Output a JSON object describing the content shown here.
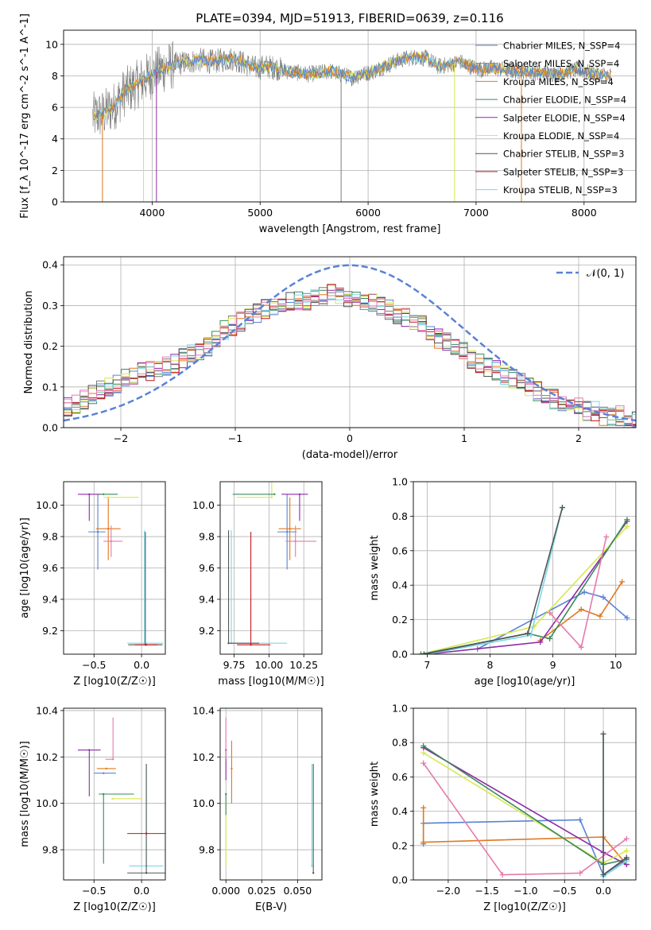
{
  "title": "PLATE=0394, MJD=51913, FIBERID=0639, z=0.116",
  "series_names": [
    "Chabrier MILES, N$_{SSP}$=4",
    "Salpeter MILES, N$_{SSP}$=4",
    "Kroupa MILES, N$_{SSP}$=4",
    "Chabrier ELODIE, N$_{SSP}$=4",
    "Salpeter ELODIE, N$_{SSP}$=4",
    "Kroupa ELODIE, N$_{SSP}$=4",
    "Chabrier STELIB, N$_{SSP}$=3",
    "Salpeter STELIB, N$_{SSP}$=3",
    "Kroupa STELIB, N$_{SSP}$=3"
  ],
  "colors": [
    "#5a82d6",
    "#7a7a7a",
    "#e0781e",
    "#3a8a5a",
    "#8e2aa8",
    "#d8e850",
    "#555555",
    "#c01818",
    "#7ad8e8",
    "#e67aac"
  ],
  "gaussian_label": "𝒩(0, 1)",
  "chart_data": [
    {
      "type": "line",
      "id": "spectrum",
      "title": "PLATE=0394, MJD=51913, FIBERID=0639, z=0.116",
      "xlabel": "wavelength [Angstrom, rest frame]",
      "ylabel": "Flux [f_λ 10^-17 erg cm^-2 s^-1 A^-1]",
      "xlim": [
        3180,
        8480
      ],
      "ylim": [
        0,
        10.9
      ],
      "xticks": [
        4000,
        5000,
        6000,
        7000,
        8000
      ],
      "yticks": [
        0,
        2,
        4,
        6,
        8,
        10
      ],
      "legend": [
        "Chabrier MILES, N_SSP=4",
        "Salpeter MILES, N_SSP=4",
        "Kroupa MILES, N_SSP=4",
        "Chabrier ELODIE, N_SSP=4",
        "Salpeter ELODIE, N_SSP=4",
        "Kroupa ELODIE, N_SSP=4",
        "Chabrier STELIB, N_SSP=3",
        "Salpeter STELIB, N_SSP=3",
        "Kroupa STELIB, N_SSP=3"
      ],
      "legend_position": "upper right",
      "continuum": {
        "x": [
          3450,
          3550,
          3650,
          3750,
          3850,
          3950,
          4050,
          4150,
          4250,
          4350,
          4450,
          4550,
          4650,
          4750,
          4850,
          4950,
          5050,
          5150,
          5250,
          5350,
          5450,
          5550,
          5650,
          5750,
          5850,
          5950,
          6050,
          6150,
          6250,
          6350,
          6450,
          6550,
          6650,
          6750,
          6850,
          6950,
          7050,
          7150,
          7250,
          7350,
          7450,
          7550,
          7650,
          7750,
          7850,
          7950,
          8050,
          8150,
          8250
        ],
        "y": [
          5.4,
          5.6,
          6.1,
          7.0,
          7.4,
          7.9,
          8.3,
          8.6,
          8.8,
          8.9,
          9.0,
          8.9,
          9.0,
          9.1,
          8.8,
          8.5,
          8.6,
          8.5,
          8.3,
          8.2,
          8.1,
          8.2,
          8.3,
          8.1,
          7.9,
          8.1,
          8.3,
          8.6,
          8.9,
          9.1,
          9.2,
          9.1,
          8.6,
          8.7,
          8.9,
          8.6,
          8.4,
          8.5,
          8.4,
          8.3,
          8.3,
          8.2,
          8.2,
          8.1,
          8.3,
          8.4,
          8.2,
          8.1,
          8.0
        ]
      },
      "x_range": [
        3450,
        8250
      ]
    },
    {
      "type": "bar",
      "id": "residuals",
      "xlabel": "(data-model)/error",
      "ylabel": "Normed distribution",
      "xlim": [
        -2.5,
        2.5
      ],
      "ylim": [
        0,
        0.42
      ],
      "xticks": [
        -2,
        -1,
        0,
        1,
        2
      ],
      "yticks": [
        0.0,
        0.1,
        0.2,
        0.3,
        0.4
      ],
      "legend": [
        "𝒩(0, 1)"
      ],
      "legend_position": "upper right",
      "bin_width": 0.1,
      "bin_start": -2.5,
      "profile": [
        0.05,
        0.06,
        0.07,
        0.08,
        0.09,
        0.1,
        0.11,
        0.12,
        0.13,
        0.14,
        0.14,
        0.15,
        0.15,
        0.16,
        0.17,
        0.18,
        0.19,
        0.2,
        0.22,
        0.24,
        0.25,
        0.26,
        0.27,
        0.28,
        0.29,
        0.3,
        0.3,
        0.31,
        0.31,
        0.31,
        0.32,
        0.32,
        0.33,
        0.33,
        0.32,
        0.32,
        0.31,
        0.31,
        0.3,
        0.29,
        0.28,
        0.27,
        0.26,
        0.25,
        0.24,
        0.22,
        0.21,
        0.2,
        0.19,
        0.17,
        0.16,
        0.15,
        0.14,
        0.13,
        0.12,
        0.11,
        0.1,
        0.09,
        0.08,
        0.07,
        0.06,
        0.05,
        0.05,
        0.04,
        0.04,
        0.03,
        0.03,
        0.03,
        0.02,
        0.02
      ]
    },
    {
      "type": "scatter",
      "id": "age-vs-z",
      "xlabel": "Z [log10(Z/Z☉)]",
      "ylabel": "age [log10(age/yr)]",
      "xlim": [
        -0.82,
        0.25
      ],
      "ylim": [
        9.05,
        10.15
      ],
      "xticks": [
        -0.5,
        0.0
      ],
      "yticks": [
        9.2,
        9.4,
        9.6,
        9.8,
        10.0
      ],
      "points": [
        {
          "c": 0,
          "x": -0.46,
          "y": 9.83,
          "xerr": [
            0.1,
            0.08
          ],
          "yerr": [
            0.24,
            0.24
          ]
        },
        {
          "c": 2,
          "x": -0.35,
          "y": 9.85,
          "xerr": [
            0.13,
            0.13
          ],
          "yerr": [
            0.2,
            0.2
          ]
        },
        {
          "c": 4,
          "x": -0.55,
          "y": 10.07,
          "xerr": [
            0.12,
            0.12
          ],
          "yerr": [
            0.17,
            0.0
          ]
        },
        {
          "c": 5,
          "x": -0.35,
          "y": 10.05,
          "xerr": [
            0.05,
            0.32
          ],
          "yerr": [
            0.0,
            0.0
          ]
        },
        {
          "c": 3,
          "x": -0.4,
          "y": 10.07,
          "xerr": [
            0.05,
            0.15
          ],
          "yerr": [
            0.0,
            0.0
          ]
        },
        {
          "c": 9,
          "x": -0.32,
          "y": 9.77,
          "xerr": [
            0.08,
            0.12
          ],
          "yerr": [
            0.1,
            0.1
          ]
        },
        {
          "c": 8,
          "x": 0.03,
          "y": 9.12,
          "xerr": [
            0.18,
            0.2
          ],
          "yerr": [
            0.0,
            0.72
          ]
        },
        {
          "c": 6,
          "x": 0.04,
          "y": 9.11,
          "xerr": [
            0.18,
            0.18
          ],
          "yerr": [
            0.0,
            0.72
          ]
        },
        {
          "c": 7,
          "x": 0.05,
          "y": 9.11,
          "xerr": [
            0.12,
            0.12
          ],
          "yerr": [
            0.0,
            0.0
          ]
        }
      ]
    },
    {
      "type": "scatter",
      "id": "age-vs-mass",
      "xlabel": "mass [log10(M/M☉)]",
      "ylabel": "",
      "xlim": [
        9.65,
        10.38
      ],
      "ylim": [
        9.05,
        10.15
      ],
      "xticks": [
        9.75,
        10.0,
        10.25
      ],
      "yticks": [
        9.2,
        9.4,
        9.6,
        9.8,
        10.0
      ],
      "points": [
        {
          "c": 0,
          "x": 10.13,
          "y": 9.83,
          "xerr": [
            0.07,
            0.07
          ],
          "yerr": [
            0.24,
            0.24
          ]
        },
        {
          "c": 2,
          "x": 10.15,
          "y": 9.85,
          "xerr": [
            0.08,
            0.08
          ],
          "yerr": [
            0.2,
            0.2
          ]
        },
        {
          "c": 4,
          "x": 10.22,
          "y": 10.07,
          "xerr": [
            0.13,
            0.06
          ],
          "yerr": [
            0.17,
            0.0
          ]
        },
        {
          "c": 5,
          "x": 10.02,
          "y": 10.05,
          "xerr": [
            0.25,
            0.0
          ],
          "yerr": [
            0.0,
            0.33
          ]
        },
        {
          "c": 3,
          "x": 10.04,
          "y": 10.07,
          "xerr": [
            0.3,
            0.0
          ],
          "yerr": [
            0.0,
            0.0
          ]
        },
        {
          "c": 9,
          "x": 10.19,
          "y": 9.77,
          "xerr": [
            0.07,
            0.15
          ],
          "yerr": [
            0.1,
            0.1
          ]
        },
        {
          "c": 8,
          "x": 9.73,
          "y": 9.12,
          "xerr": [
            0.0,
            0.4
          ],
          "yerr": [
            0.0,
            0.72
          ]
        },
        {
          "c": 6,
          "x": 9.71,
          "y": 9.12,
          "xerr": [
            0.0,
            0.22
          ],
          "yerr": [
            0.0,
            0.72
          ]
        },
        {
          "c": 7,
          "x": 9.87,
          "y": 9.11,
          "xerr": [
            0.1,
            0.14
          ],
          "yerr": [
            0.0,
            0.72
          ]
        }
      ]
    },
    {
      "type": "line",
      "id": "mass-weight-vs-age",
      "xlabel": "age [log10(age/yr)]",
      "ylabel": "mass weight",
      "xlim": [
        6.78,
        10.32
      ],
      "ylim": [
        0.0,
        1.0
      ],
      "xticks": [
        7,
        8,
        9,
        10
      ],
      "yticks": [
        0.0,
        0.2,
        0.4,
        0.6,
        0.8,
        1.0
      ],
      "series": [
        {
          "c": 0,
          "x": [
            7.8,
            9.5,
            9.8,
            10.18
          ],
          "y": [
            0.03,
            0.36,
            0.33,
            0.21
          ]
        },
        {
          "c": 2,
          "x": [
            8.8,
            9.45,
            9.75,
            10.1
          ],
          "y": [
            0.08,
            0.26,
            0.22,
            0.42
          ]
        },
        {
          "c": 4,
          "x": [
            7.0,
            8.8,
            10.18
          ],
          "y": [
            0.0,
            0.07,
            0.77
          ]
        },
        {
          "c": 5,
          "x": [
            6.9,
            8.7,
            10.18
          ],
          "y": [
            0.0,
            0.16,
            0.74
          ]
        },
        {
          "c": 3,
          "x": [
            6.9,
            8.6,
            8.95,
            10.18
          ],
          "y": [
            0.0,
            0.12,
            0.09,
            0.78
          ]
        },
        {
          "c": 9,
          "x": [
            8.95,
            9.45,
            9.85
          ],
          "y": [
            0.24,
            0.04,
            0.68
          ]
        },
        {
          "c": 8,
          "x": [
            7.0,
            8.65,
            9.15
          ],
          "y": [
            0.0,
            0.11,
            0.85
          ]
        },
        {
          "c": 6,
          "x": [
            6.95,
            8.6,
            9.15
          ],
          "y": [
            0.0,
            0.12,
            0.85
          ]
        }
      ]
    },
    {
      "type": "scatter",
      "id": "mass-vs-z",
      "xlabel": "Z [log10(Z/Z☉)]",
      "ylabel": "mass [log10(M/M☉)]",
      "xlim": [
        -0.82,
        0.25
      ],
      "ylim": [
        9.67,
        10.41
      ],
      "xticks": [
        -0.5,
        0.0
      ],
      "yticks": [
        9.8,
        10.0,
        10.2,
        10.4
      ],
      "points": [
        {
          "c": 0,
          "x": -0.4,
          "y": 10.13,
          "xerr": [
            0.1,
            0.13
          ],
          "yerr": [
            0.0,
            0.0
          ]
        },
        {
          "c": 2,
          "x": -0.37,
          "y": 10.15,
          "xerr": [
            0.1,
            0.1
          ],
          "yerr": [
            0.0,
            0.0
          ]
        },
        {
          "c": 4,
          "x": -0.55,
          "y": 10.23,
          "xerr": [
            0.12,
            0.12
          ],
          "yerr": [
            0.2,
            0.0
          ]
        },
        {
          "c": 5,
          "x": -0.3,
          "y": 10.02,
          "xerr": [
            0.02,
            0.3
          ],
          "yerr": [
            0.0,
            0.0
          ]
        },
        {
          "c": 3,
          "x": -0.4,
          "y": 10.04,
          "xerr": [
            0.05,
            0.32
          ],
          "yerr": [
            0.3,
            0.0
          ]
        },
        {
          "c": 9,
          "x": -0.3,
          "y": 10.19,
          "xerr": [
            0.08,
            0.0
          ],
          "yerr": [
            0.0,
            0.18
          ]
        },
        {
          "c": 8,
          "x": 0.05,
          "y": 9.73,
          "xerr": [
            0.18,
            0.18
          ],
          "yerr": [
            0.0,
            0.44
          ]
        },
        {
          "c": 6,
          "x": 0.05,
          "y": 9.7,
          "xerr": [
            0.2,
            0.2
          ],
          "yerr": [
            0.0,
            0.47
          ]
        },
        {
          "c": 7,
          "x": 0.05,
          "y": 9.87,
          "xerr": [
            0.2,
            0.2
          ],
          "yerr": [
            0.0,
            0.0
          ]
        }
      ]
    },
    {
      "type": "scatter",
      "id": "mass-vs-ebv",
      "xlabel": "E(B-V)",
      "ylabel": "",
      "xlim": [
        -0.004,
        0.067
      ],
      "ylim": [
        9.67,
        10.41
      ],
      "xticks": [
        0.0,
        0.025,
        0.05
      ],
      "yticks": [
        9.8,
        10.0,
        10.2,
        10.4
      ],
      "points": [
        {
          "c": 4,
          "x": 0.0,
          "y": 10.23,
          "yerr": [
            0.13,
            0.0
          ]
        },
        {
          "c": 9,
          "x": 0.0,
          "y": 10.19,
          "yerr": [
            0.0,
            0.18
          ]
        },
        {
          "c": 2,
          "x": 0.004,
          "y": 10.15,
          "yerr": [
            0.15,
            0.12
          ]
        },
        {
          "c": 5,
          "x": 0.0,
          "y": 10.0,
          "yerr": [
            0.27,
            0.0
          ]
        },
        {
          "c": 3,
          "x": 0.0,
          "y": 10.04,
          "yerr": [
            0.09,
            0.0
          ]
        },
        {
          "c": 8,
          "x": 0.06,
          "y": 9.73,
          "yerr": [
            0.0,
            0.44
          ]
        },
        {
          "c": 6,
          "x": 0.061,
          "y": 9.7,
          "yerr": [
            0.0,
            0.47
          ]
        }
      ]
    },
    {
      "type": "line",
      "id": "mass-weight-vs-z",
      "xlabel": "Z [log10(Z/Z☉)]",
      "ylabel": "mass weight",
      "xlim": [
        -2.45,
        0.42
      ],
      "ylim": [
        0.0,
        1.0
      ],
      "xticks": [
        -2.0,
        -1.5,
        -1.0,
        -0.5,
        0.0
      ],
      "yticks": [
        0.0,
        0.2,
        0.4,
        0.6,
        0.8,
        1.0
      ],
      "series": [
        {
          "c": 0,
          "x": [
            -2.32,
            -2.32,
            -0.3,
            0.0,
            0.3
          ],
          "y": [
            0.21,
            0.33,
            0.35,
            0.03,
            0.12
          ]
        },
        {
          "c": 2,
          "x": [
            -2.32,
            -2.32,
            0.0,
            0.3
          ],
          "y": [
            0.42,
            0.22,
            0.25,
            0.09
          ]
        },
        {
          "c": 4,
          "x": [
            -2.32,
            0.0,
            0.3
          ],
          "y": [
            0.77,
            0.16,
            0.09
          ]
        },
        {
          "c": 5,
          "x": [
            -2.32,
            0.0,
            0.3
          ],
          "y": [
            0.74,
            0.1,
            0.17
          ]
        },
        {
          "c": 3,
          "x": [
            -2.32,
            0.0,
            0.3
          ],
          "y": [
            0.78,
            0.09,
            0.12
          ]
        },
        {
          "c": 9,
          "x": [
            -2.32,
            -1.3,
            -0.3,
            0.3
          ],
          "y": [
            0.68,
            0.03,
            0.04,
            0.24
          ]
        },
        {
          "c": 8,
          "x": [
            0.0,
            0.0,
            0.3
          ],
          "y": [
            0.85,
            0.02,
            0.11
          ]
        },
        {
          "c": 6,
          "x": [
            0.0,
            0.0,
            0.3
          ],
          "y": [
            0.85,
            0.03,
            0.13
          ]
        }
      ]
    }
  ]
}
